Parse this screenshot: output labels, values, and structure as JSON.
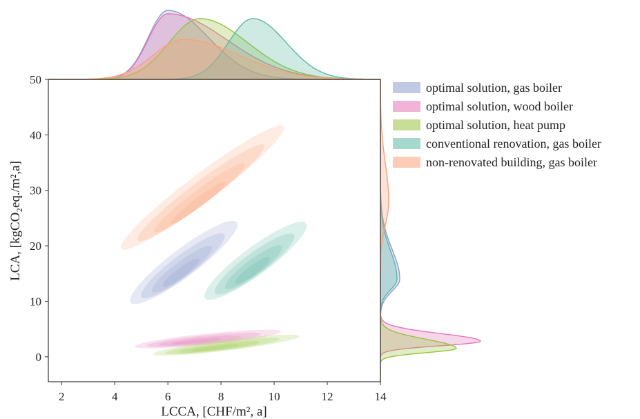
{
  "chart_data": {
    "type": "kde-joint",
    "xlabel": "LCCA, [CHF/m², a]",
    "ylabel": "LCA, [kgCO₂eq./m²,a]",
    "xlim": [
      1.5,
      14
    ],
    "ylim": [
      -4.5,
      50
    ],
    "xticks": [
      "2",
      "4",
      "6",
      "8",
      "10",
      "12",
      "14"
    ],
    "yticks": [
      "0",
      "10",
      "20",
      "30",
      "40",
      "50"
    ],
    "legend_position": "right",
    "series": [
      {
        "name": "optimal solution, gas boiler",
        "color": "#8e9ccc",
        "center": [
          6.6,
          17.0
        ],
        "x_range": [
          4.7,
          8.7
        ],
        "y_range": [
          10.0,
          24.5
        ],
        "x_peak": 6.0,
        "y_peak": 14.0
      },
      {
        "name": "optimal solution, wood boiler",
        "color": "#e377b7",
        "center": [
          7.5,
          3.2
        ],
        "x_range": [
          4.7,
          10.2
        ],
        "y_range": [
          1.8,
          4.5
        ],
        "x_peak": 6.0,
        "y_peak": 2.8
      },
      {
        "name": "optimal solution, heat pump",
        "color": "#98c23f",
        "center": [
          8.2,
          2.1
        ],
        "x_range": [
          5.0,
          10.5
        ],
        "y_range": [
          0.6,
          3.8
        ],
        "x_peak": 7.2,
        "y_peak": 1.5
      },
      {
        "name": "conventional renovation, gas boiler",
        "color": "#5cb8a2",
        "center": [
          9.3,
          17.3
        ],
        "x_range": [
          7.5,
          11.3
        ],
        "y_range": [
          10.5,
          24.0
        ],
        "x_peak": 9.2,
        "y_peak": 14.0
      },
      {
        "name": "non-renovated building, gas boiler",
        "color": "#f9a27b",
        "center": [
          7.3,
          30.5
        ],
        "x_range": [
          4.4,
          10.5
        ],
        "y_range": [
          19.5,
          41.5
        ],
        "x_peak": 6.6,
        "y_peak": 28.0
      }
    ]
  }
}
